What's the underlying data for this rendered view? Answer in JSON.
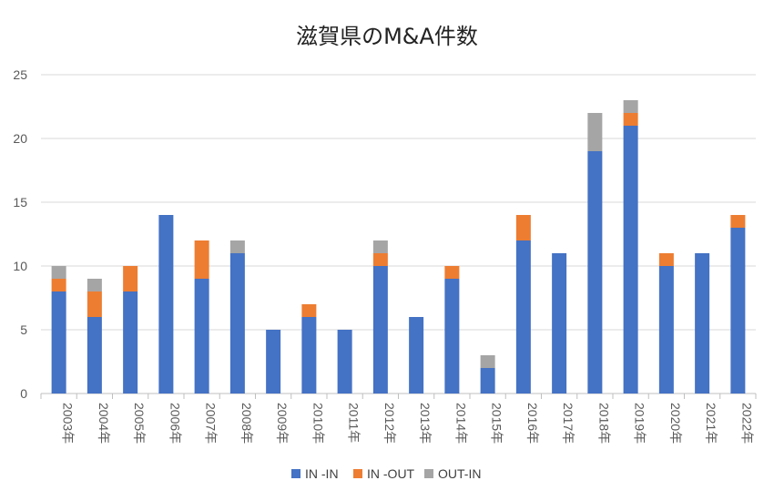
{
  "chart_data": {
    "type": "bar",
    "stacked": true,
    "title": "滋賀県のM&A件数",
    "xlabel": "",
    "ylabel": "",
    "ylim": [
      0,
      25
    ],
    "yticks": [
      0,
      5,
      10,
      15,
      20,
      25
    ],
    "grid": true,
    "legend_position": "bottom",
    "categories": [
      "2003年",
      "2004年",
      "2005年",
      "2006年",
      "2007年",
      "2008年",
      "2009年",
      "2010年",
      "2011年",
      "2012年",
      "2013年",
      "2014年",
      "2015年",
      "2016年",
      "2017年",
      "2018年",
      "2019年",
      "2020年",
      "2021年",
      "2022年"
    ],
    "series": [
      {
        "name": "IN -IN",
        "color": "#4472C4",
        "values": [
          8,
          6,
          8,
          14,
          9,
          11,
          5,
          6,
          5,
          10,
          6,
          9,
          2,
          12,
          11,
          19,
          21,
          10,
          11,
          13
        ]
      },
      {
        "name": "IN -OUT",
        "color": "#ED7D31",
        "values": [
          1,
          2,
          2,
          0,
          3,
          0,
          0,
          1,
          0,
          1,
          0,
          1,
          0,
          2,
          0,
          0,
          1,
          1,
          0,
          1
        ]
      },
      {
        "name": "OUT-IN",
        "color": "#A5A5A5",
        "values": [
          1,
          1,
          0,
          0,
          0,
          1,
          0,
          0,
          0,
          1,
          0,
          0,
          1,
          0,
          0,
          3,
          1,
          0,
          0,
          0
        ]
      }
    ]
  }
}
